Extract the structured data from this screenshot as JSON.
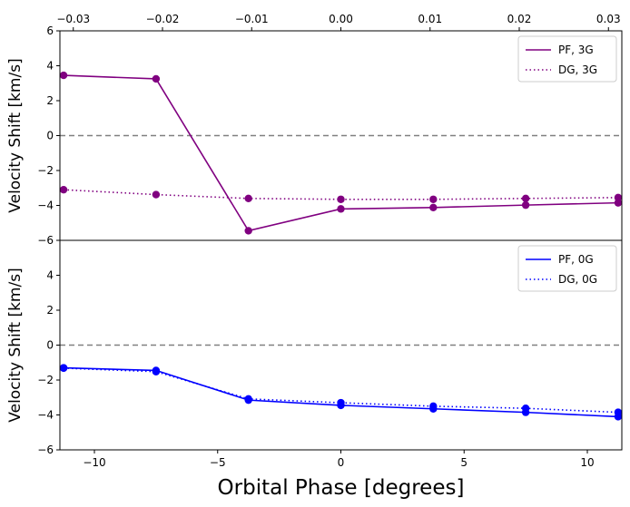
{
  "chart_data": [
    {
      "type": "line",
      "panel": "top",
      "title": "",
      "xlabel": "",
      "ylabel": "Velocity Shift [km/s]",
      "xlim": [
        -11.4,
        11.4
      ],
      "ylim": [
        -6,
        6
      ],
      "yticks": [
        -6,
        -4,
        -2,
        0,
        2,
        4,
        6
      ],
      "ytick_labels": [
        "−6",
        "−4",
        "−2",
        "0",
        "2",
        "4",
        "6"
      ],
      "top_axis": {
        "xlim": [
          -0.0315,
          0.0315
        ],
        "ticks": [
          -0.03,
          -0.02,
          -0.01,
          0.0,
          0.01,
          0.02,
          0.03
        ],
        "tick_labels": [
          "−0.03",
          "−0.02",
          "−0.01",
          "0.00",
          "0.01",
          "0.02",
          "0.03"
        ]
      },
      "reference_line_y": 0,
      "legend_position": "top-right",
      "x": [
        -11.25,
        -7.5,
        -3.75,
        0,
        3.75,
        7.5,
        11.25
      ],
      "series": [
        {
          "name": "PF, 3G",
          "color": "#800080",
          "style": "solid",
          "values": [
            3.45,
            3.25,
            -5.45,
            -4.2,
            -4.12,
            -3.98,
            -3.85
          ]
        },
        {
          "name": "DG, 3G",
          "color": "#800080",
          "style": "dotted",
          "values": [
            -3.1,
            -3.38,
            -3.6,
            -3.65,
            -3.65,
            -3.6,
            -3.55
          ]
        }
      ]
    },
    {
      "type": "line",
      "panel": "bottom",
      "title": "",
      "xlabel": "Orbital Phase [degrees]",
      "ylabel": "Velocity Shift [km/s]",
      "xlim": [
        -11.4,
        11.4
      ],
      "xticks": [
        -10,
        -5,
        0,
        5,
        10
      ],
      "xtick_labels": [
        "−10",
        "−5",
        "0",
        "5",
        "10"
      ],
      "ylim": [
        -6,
        6
      ],
      "yticks": [
        -6,
        -4,
        -2,
        0,
        2,
        4
      ],
      "ytick_labels": [
        "−6",
        "−4",
        "−2",
        "0",
        "2",
        "4"
      ],
      "reference_line_y": 0,
      "legend_position": "top-right",
      "x": [
        -11.25,
        -7.5,
        -3.75,
        0,
        3.75,
        7.5,
        11.25
      ],
      "series": [
        {
          "name": "PF, 0G",
          "color": "#0000ff",
          "style": "solid",
          "values": [
            -1.3,
            -1.45,
            -3.15,
            -3.45,
            -3.65,
            -3.85,
            -4.1
          ]
        },
        {
          "name": "DG, 0G",
          "color": "#0000ff",
          "style": "dotted",
          "values": [
            -1.32,
            -1.52,
            -3.08,
            -3.3,
            -3.5,
            -3.62,
            -3.85
          ]
        }
      ]
    }
  ]
}
